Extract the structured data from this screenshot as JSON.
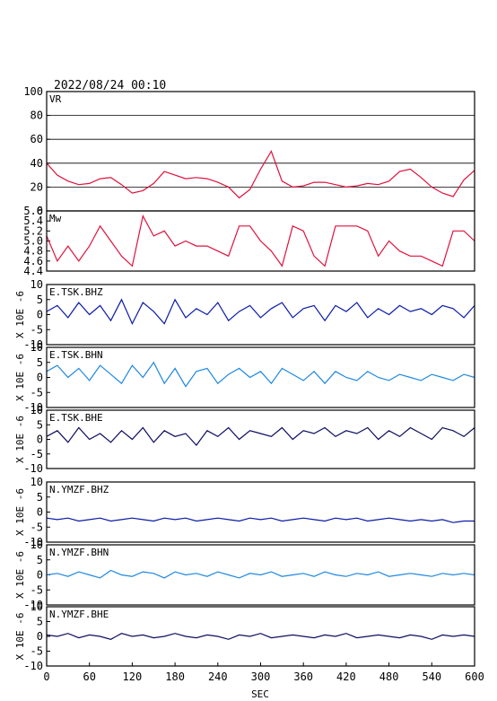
{
  "header": {
    "timestamp": "2022/08/24 00:10"
  },
  "colors": {
    "vr": "#e0103c",
    "mw": "#e0103c",
    "bhz": "#0a1aa8",
    "bhn": "#1e88e0",
    "bhe": "#0d0d60",
    "frame": "#000000"
  },
  "x_axis": {
    "label": "SEC",
    "ticks": [
      "0",
      "60",
      "120",
      "180",
      "240",
      "300",
      "360",
      "420",
      "480",
      "540",
      "600"
    ],
    "range": [
      0,
      600
    ]
  },
  "chart_data": [
    {
      "type": "line",
      "id": "vr",
      "title": "VR",
      "ylabel": "",
      "ylim": [
        0,
        100
      ],
      "yticks": [
        "100",
        "80",
        "60",
        "40",
        "20",
        "0"
      ],
      "grid": true,
      "x": [
        0,
        15,
        30,
        45,
        60,
        75,
        90,
        105,
        120,
        135,
        150,
        165,
        180,
        195,
        210,
        225,
        240,
        255,
        270,
        285,
        300,
        315,
        330,
        345,
        360,
        375,
        390,
        405,
        420,
        435,
        450,
        465,
        480,
        495,
        510,
        525,
        540,
        555,
        570,
        585,
        600
      ],
      "series": [
        {
          "values": [
            40,
            30,
            25,
            22,
            23,
            27,
            28,
            22,
            15,
            17,
            23,
            33,
            30,
            27,
            28,
            27,
            24,
            20,
            11,
            18,
            35,
            50,
            25,
            20,
            21,
            24,
            24,
            22,
            20,
            21,
            23,
            22,
            25,
            33,
            35,
            28,
            20,
            15,
            12,
            26,
            34
          ]
        }
      ]
    },
    {
      "type": "line",
      "id": "mw",
      "title": "Mw",
      "ylabel": "",
      "ylim": [
        4.4,
        5.6
      ],
      "yticks": [
        "5.6",
        "5.4",
        "5.2",
        "5.0",
        "4.8",
        "4.6",
        "4.4"
      ],
      "grid": false,
      "x": [
        0,
        15,
        30,
        45,
        60,
        75,
        90,
        105,
        120,
        135,
        150,
        165,
        180,
        195,
        210,
        225,
        240,
        255,
        270,
        285,
        300,
        315,
        330,
        345,
        360,
        375,
        390,
        405,
        420,
        435,
        450,
        465,
        480,
        495,
        510,
        525,
        540,
        555,
        570,
        585,
        600
      ],
      "series": [
        {
          "values": [
            5.1,
            4.6,
            4.9,
            4.6,
            4.9,
            5.3,
            5.0,
            4.7,
            4.5,
            5.5,
            5.1,
            5.2,
            4.9,
            5.0,
            4.9,
            4.9,
            4.8,
            4.7,
            5.3,
            5.3,
            5.0,
            4.8,
            4.5,
            5.3,
            5.2,
            4.7,
            4.5,
            5.3,
            5.3,
            5.3,
            5.2,
            4.7,
            5.0,
            4.8,
            4.7,
            4.7,
            4.6,
            4.5,
            5.2,
            5.2,
            5.0
          ]
        }
      ]
    },
    {
      "type": "line",
      "id": "e_tsk_bhz",
      "title": "E.TSK.BHZ",
      "ylabel": "X 10E -6",
      "ylim": [
        -10,
        10
      ],
      "yticks": [
        "10",
        "5",
        "0",
        "-5",
        "-10"
      ],
      "grid": false,
      "x": [
        0,
        15,
        30,
        45,
        60,
        75,
        90,
        105,
        120,
        135,
        150,
        165,
        180,
        195,
        210,
        225,
        240,
        255,
        270,
        285,
        300,
        315,
        330,
        345,
        360,
        375,
        390,
        405,
        420,
        435,
        450,
        465,
        480,
        495,
        510,
        525,
        540,
        555,
        570,
        585,
        600
      ],
      "series": [
        {
          "values": [
            1,
            3,
            -1,
            4,
            0,
            3,
            -2,
            5,
            -3,
            4,
            1,
            -3,
            5,
            -1,
            2,
            0,
            4,
            -2,
            1,
            3,
            -1,
            2,
            4,
            -1,
            2,
            3,
            -2,
            3,
            1,
            4,
            -1,
            2,
            0,
            3,
            1,
            2,
            0,
            3,
            2,
            -1,
            3
          ]
        }
      ]
    },
    {
      "type": "line",
      "id": "e_tsk_bhn",
      "title": "E.TSK.BHN",
      "ylabel": "X 10E -6",
      "ylim": [
        -10,
        10
      ],
      "yticks": [
        "10",
        "5",
        "0",
        "-5",
        "-10"
      ],
      "grid": false,
      "x": [
        0,
        15,
        30,
        45,
        60,
        75,
        90,
        105,
        120,
        135,
        150,
        165,
        180,
        195,
        210,
        225,
        240,
        255,
        270,
        285,
        300,
        315,
        330,
        345,
        360,
        375,
        390,
        405,
        420,
        435,
        450,
        465,
        480,
        495,
        510,
        525,
        540,
        555,
        570,
        585,
        600
      ],
      "series": [
        {
          "values": [
            2,
            4,
            0,
            3,
            -1,
            4,
            1,
            -2,
            4,
            0,
            5,
            -2,
            3,
            -3,
            2,
            3,
            -2,
            1,
            3,
            0,
            2,
            -2,
            3,
            1,
            -1,
            2,
            -2,
            2,
            0,
            -1,
            2,
            0,
            -1,
            1,
            0,
            -1,
            1,
            0,
            -1,
            1,
            0
          ]
        }
      ]
    },
    {
      "type": "line",
      "id": "e_tsk_bhe",
      "title": "E.TSK.BHE",
      "ylabel": "X 10E -6",
      "ylim": [
        -10,
        10
      ],
      "yticks": [
        "10",
        "5",
        "0",
        "-5",
        "-10"
      ],
      "grid": false,
      "x": [
        0,
        15,
        30,
        45,
        60,
        75,
        90,
        105,
        120,
        135,
        150,
        165,
        180,
        195,
        210,
        225,
        240,
        255,
        270,
        285,
        300,
        315,
        330,
        345,
        360,
        375,
        390,
        405,
        420,
        435,
        450,
        465,
        480,
        495,
        510,
        525,
        540,
        555,
        570,
        585,
        600
      ],
      "series": [
        {
          "values": [
            1,
            3,
            -1,
            4,
            0,
            2,
            -1,
            3,
            0,
            4,
            -1,
            3,
            1,
            2,
            -2,
            3,
            1,
            4,
            0,
            3,
            2,
            1,
            4,
            0,
            3,
            2,
            4,
            1,
            3,
            2,
            4,
            0,
            3,
            1,
            4,
            2,
            0,
            4,
            3,
            1,
            4
          ]
        }
      ]
    },
    {
      "type": "line",
      "id": "n_ymzf_bhz",
      "title": "N.YMZF.BHZ",
      "ylabel": "X 10E -6",
      "ylim": [
        -10,
        10
      ],
      "yticks": [
        "10",
        "5",
        "0",
        "-5",
        "-10"
      ],
      "grid": false,
      "x": [
        0,
        15,
        30,
        45,
        60,
        75,
        90,
        105,
        120,
        135,
        150,
        165,
        180,
        195,
        210,
        225,
        240,
        255,
        270,
        285,
        300,
        315,
        330,
        345,
        360,
        375,
        390,
        405,
        420,
        435,
        450,
        465,
        480,
        495,
        510,
        525,
        540,
        555,
        570,
        585,
        600
      ],
      "series": [
        {
          "values": [
            -2,
            -2.5,
            -2,
            -3,
            -2.5,
            -2,
            -3,
            -2.5,
            -2,
            -2.5,
            -3,
            -2,
            -2.5,
            -2,
            -3,
            -2.5,
            -2,
            -2.5,
            -3,
            -2,
            -2.5,
            -2,
            -3,
            -2.5,
            -2,
            -2.5,
            -3,
            -2,
            -2.5,
            -2,
            -3,
            -2.5,
            -2,
            -2.5,
            -3,
            -2.5,
            -3,
            -2.5,
            -3.5,
            -3,
            -3
          ]
        }
      ]
    },
    {
      "type": "line",
      "id": "n_ymzf_bhn",
      "title": "N.YMZF.BHN",
      "ylabel": "X 10E -6",
      "ylim": [
        -10,
        10
      ],
      "yticks": [
        "10",
        "5",
        "0",
        "-5",
        "-10"
      ],
      "grid": false,
      "x": [
        0,
        15,
        30,
        45,
        60,
        75,
        90,
        105,
        120,
        135,
        150,
        165,
        180,
        195,
        210,
        225,
        240,
        255,
        270,
        285,
        300,
        315,
        330,
        345,
        360,
        375,
        390,
        405,
        420,
        435,
        450,
        465,
        480,
        495,
        510,
        525,
        540,
        555,
        570,
        585,
        600
      ],
      "series": [
        {
          "values": [
            0,
            0.5,
            -0.5,
            1,
            0,
            -1,
            1.5,
            0,
            -0.5,
            1,
            0.5,
            -1,
            1,
            0,
            0.5,
            -0.5,
            1,
            0,
            -1,
            0.5,
            0,
            1,
            -0.5,
            0,
            0.5,
            -0.5,
            1,
            0,
            -0.5,
            0.5,
            0,
            1,
            -0.5,
            0,
            0.5,
            0,
            -0.5,
            0.5,
            0,
            0.5,
            0
          ]
        }
      ]
    },
    {
      "type": "line",
      "id": "n_ymzf_bhe",
      "title": "N.YMZF.BHE",
      "ylabel": "X 10E -6",
      "ylim": [
        -10,
        10
      ],
      "yticks": [
        "10",
        "5",
        "0",
        "-5",
        "-10"
      ],
      "grid": false,
      "x": [
        0,
        15,
        30,
        45,
        60,
        75,
        90,
        105,
        120,
        135,
        150,
        165,
        180,
        195,
        210,
        225,
        240,
        255,
        270,
        285,
        300,
        315,
        330,
        345,
        360,
        375,
        390,
        405,
        420,
        435,
        450,
        465,
        480,
        495,
        510,
        525,
        540,
        555,
        570,
        585,
        600
      ],
      "series": [
        {
          "values": [
            0.5,
            0,
            1,
            -0.5,
            0.5,
            0,
            -1,
            1,
            0,
            0.5,
            -0.5,
            0,
            1,
            0,
            -0.5,
            0.5,
            0,
            -1,
            0.5,
            0,
            1,
            -0.5,
            0,
            0.5,
            0,
            -0.5,
            0.5,
            0,
            1,
            -0.5,
            0,
            0.5,
            0,
            -0.5,
            0.5,
            0,
            -1,
            0.5,
            0,
            0.5,
            0
          ]
        }
      ]
    }
  ]
}
